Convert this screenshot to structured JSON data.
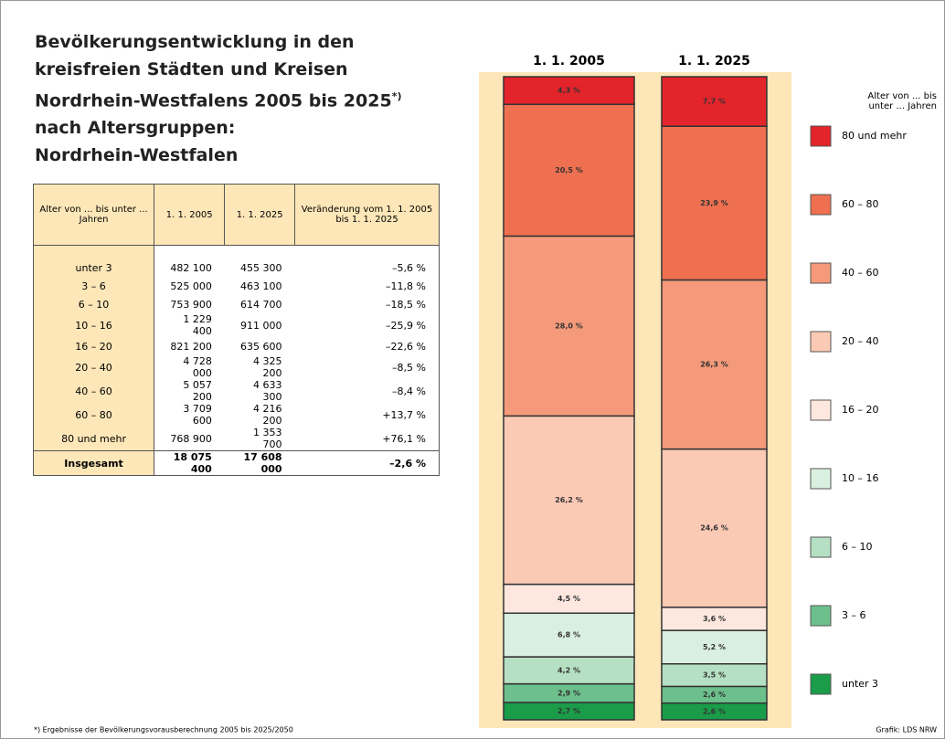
{
  "title_lines": [
    "Bevölkerungsentwicklung in den",
    "kreisfreien Städten und Kreisen",
    "Nordrhein-Westfalens 2005 bis 2025",
    "nach Altersgruppen:",
    "Nordrhein-Westfalen"
  ],
  "title_mark": "*)",
  "table": {
    "header": [
      "Alter von ... bis unter ... Jahren",
      "1. 1. 2005",
      "1. 1. 2025",
      "Veränderung vom 1. 1. 2005 bis 1. 1. 2025"
    ],
    "rows": [
      [
        "unter 3",
        "482 100",
        "455 300",
        "–5,6 %"
      ],
      [
        "3 – 6",
        "525 000",
        "463 100",
        "–11,8 %"
      ],
      [
        "6 – 10",
        "753 900",
        "614 700",
        "–18,5 %"
      ],
      [
        "10 – 16",
        "1 229 400",
        "911 000",
        "–25,9 %"
      ],
      [
        "16 – 20",
        "821 200",
        "635 600",
        "–22,6 %"
      ],
      [
        "20 – 40",
        "4 728 000",
        "4 325 200",
        "–8,5 %"
      ],
      [
        "40 – 60",
        "5 057 200",
        "4 633 300",
        "–8,4 %"
      ],
      [
        "60 – 80",
        "3 709 600",
        "4 216 200",
        "+13,7 %"
      ],
      [
        "80 und mehr",
        "768 900",
        "1 353 700",
        "+76,1 %"
      ]
    ],
    "total": [
      "Insgesamt",
      "18 075 400",
      "17 608 000",
      "–2,6 %"
    ]
  },
  "footnote": "*) Ergebnisse der Bevölkerungsvorausberechnung 2005 bis 2025/2050",
  "credit": "Grafik: LDS NRW",
  "chart_data": {
    "type": "stacked-bar",
    "categories": [
      "1. 1. 2005",
      "1. 1. 2025"
    ],
    "legend_title": [
      "Alter von ... bis",
      "unter ... Jahren"
    ],
    "series": [
      {
        "name": "unter 3",
        "color": "#1a9c49",
        "values": [
          2.7,
          2.6
        ],
        "value_labels": [
          "2,7 %",
          "2,6 %"
        ]
      },
      {
        "name": "3 – 6",
        "color": "#6cc08b",
        "values": [
          2.9,
          2.6
        ],
        "value_labels": [
          "2,9 %",
          "2,6 %"
        ]
      },
      {
        "name": "6 – 10",
        "color": "#b5e0c3",
        "values": [
          4.2,
          3.5
        ],
        "value_labels": [
          "4,2 %",
          "3,5 %"
        ]
      },
      {
        "name": "10 – 16",
        "color": "#d9efdf",
        "values": [
          6.8,
          5.2
        ],
        "value_labels": [
          "6,8 %",
          "5,2 %"
        ]
      },
      {
        "name": "16 – 20",
        "color": "#fde7df",
        "values": [
          4.5,
          3.6
        ],
        "value_labels": [
          "4,5 %",
          "3,6 %"
        ]
      },
      {
        "name": "20 – 40",
        "color": "#fbcab5",
        "values": [
          26.2,
          24.6
        ],
        "value_labels": [
          "26,2 %",
          "24,6 %"
        ]
      },
      {
        "name": "40 – 60",
        "color": "#f49a7a",
        "values": [
          28.0,
          26.3
        ],
        "value_labels": [
          "28,0 %",
          "26,3 %"
        ]
      },
      {
        "name": "60 – 80",
        "color": "#ef7050",
        "values": [
          20.5,
          23.9
        ],
        "value_labels": [
          "20,5 %",
          "23,9 %"
        ]
      },
      {
        "name": "80 und mehr",
        "color": "#e3242b",
        "values": [
          4.3,
          7.7
        ],
        "value_labels": [
          "4,3 %",
          "7,7 %"
        ]
      }
    ]
  }
}
